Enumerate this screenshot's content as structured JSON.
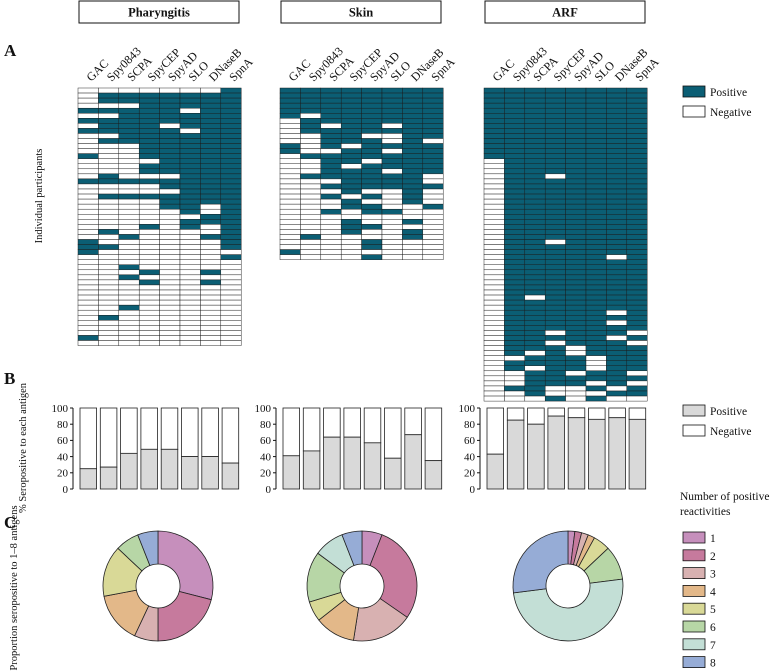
{
  "panels": [
    {
      "label": "A"
    },
    {
      "label": "B"
    },
    {
      "label": "C"
    }
  ],
  "chart_data": [
    {
      "type": "heatmap",
      "panel": "A",
      "ylabel": "Individual participants",
      "antigens": [
        "GAC",
        "Spy0843",
        "SCPA",
        "SpyCEP",
        "SpyAD",
        "SLO",
        "DNaseB",
        "SpnA"
      ],
      "legend": [
        {
          "label": "Positive",
          "color": "#0b5e74"
        },
        {
          "label": "Negative",
          "color": "#ffffff"
        }
      ],
      "groups": [
        {
          "name": "Pharyngitis",
          "rows": [
            "00000001",
            "01111111",
            "01111111",
            "00011111",
            "11111011",
            "00111111",
            "11111111",
            "01110111",
            "11111011",
            "00111111",
            "01111111",
            "00011111",
            "00011111",
            "10011111",
            "00001111",
            "00011111",
            "00011111",
            "01000111",
            "11111111",
            "00001111",
            "00000111",
            "01111111",
            "00001111",
            "00001101",
            "00000101",
            "00000011",
            "00000111",
            "00010101",
            "01000001",
            "00100011",
            "10000001",
            "11000001",
            "10000000",
            "00000001",
            "00000000",
            "00100000",
            "00010010",
            "00100000",
            "00010010",
            "00000000",
            "00000000",
            "00000000",
            "00000000",
            "00100000",
            "00000000",
            "01000000",
            "00000000",
            "00000000",
            "00000000",
            "10000000",
            "00000000"
          ]
        },
        {
          "name": "Skin",
          "rows": [
            "11111111",
            "11111111",
            "11111111",
            "11111111",
            "11111111",
            "10111111",
            "01111111",
            "01011011",
            "01111111",
            "00110011",
            "00111010",
            "10101111",
            "10011011",
            "01111111",
            "00110111",
            "00101111",
            "00111011",
            "01111110",
            "00011110",
            "00111111",
            "00010010",
            "00101010",
            "00010010",
            "00011001",
            "00101100",
            "00000000",
            "00010010",
            "00011000",
            "00010010",
            "01000010",
            "00001000",
            "00001000",
            "10000000",
            "00001000"
          ]
        },
        {
          "name": "ARF",
          "rows": [
            "11111111",
            "11111111",
            "11111111",
            "11111111",
            "11111111",
            "11111111",
            "11111111",
            "11111111",
            "11111111",
            "11111111",
            "11111111",
            "11111111",
            "11111111",
            "11111111",
            "01111111",
            "01111111",
            "01111111",
            "01101111",
            "01111111",
            "01111111",
            "01111111",
            "01111111",
            "01111111",
            "01111111",
            "01111111",
            "01111111",
            "01111111",
            "01111111",
            "01111111",
            "01111111",
            "01101111",
            "01111111",
            "01111111",
            "01111101",
            "01111111",
            "01111111",
            "01111111",
            "01111111",
            "01111111",
            "01111111",
            "01111111",
            "01011111",
            "01111111",
            "01111111",
            "01111101",
            "01111111",
            "01111101",
            "01111111",
            "01101110",
            "01111101",
            "01101110",
            "01110111",
            "01010111",
            "00111011",
            "01111011",
            "01011011",
            "00110110",
            "00111111",
            "00111010",
            "01100101",
            "00100011",
            "00010100"
          ]
        }
      ]
    },
    {
      "type": "bar",
      "stacked": true,
      "panel": "B",
      "ylabel": "% Seropositive to each antigen",
      "ylim": [
        0,
        100
      ],
      "yticks": [
        0,
        20,
        40,
        60,
        80,
        100
      ],
      "categories": [
        "GAC",
        "Spy0843",
        "SCPA",
        "SpyCEP",
        "SpyAD",
        "SLO",
        "DNaseB",
        "SpnA"
      ],
      "legend": [
        {
          "label": "Positive",
          "color": "#d9d9d9"
        },
        {
          "label": "Negative",
          "color": "#ffffff"
        }
      ],
      "groups": [
        {
          "name": "Pharyngitis",
          "positive": [
            25,
            27,
            44,
            49,
            49,
            40,
            40,
            32
          ]
        },
        {
          "name": "Skin",
          "positive": [
            41,
            47,
            64,
            64,
            57,
            38,
            67,
            35
          ]
        },
        {
          "name": "ARF",
          "positive": [
            43,
            85,
            80,
            90,
            88,
            86,
            88,
            86
          ]
        }
      ]
    },
    {
      "type": "pie",
      "donut": true,
      "panel": "C",
      "ylabel": "Proportion seropositive to 1–8 antigens",
      "legend_title": "Number of positive reactivities",
      "categories": [
        "1",
        "2",
        "3",
        "4",
        "5",
        "6",
        "7",
        "8"
      ],
      "colors": [
        "#c68fbc",
        "#c67a9d",
        "#d8b1b1",
        "#e3b889",
        "#d9d997",
        "#b7d6a6",
        "#c3dfd6",
        "#96acd6"
      ],
      "groups": [
        {
          "name": "Pharyngitis",
          "values": [
            29,
            21,
            7,
            15,
            15,
            7,
            0,
            6
          ]
        },
        {
          "name": "Skin",
          "values": [
            6,
            29,
            18,
            12,
            6,
            15,
            9,
            6
          ]
        },
        {
          "name": "ARF",
          "values": [
            2,
            2,
            2,
            2,
            5,
            10,
            50,
            27
          ]
        }
      ]
    }
  ]
}
